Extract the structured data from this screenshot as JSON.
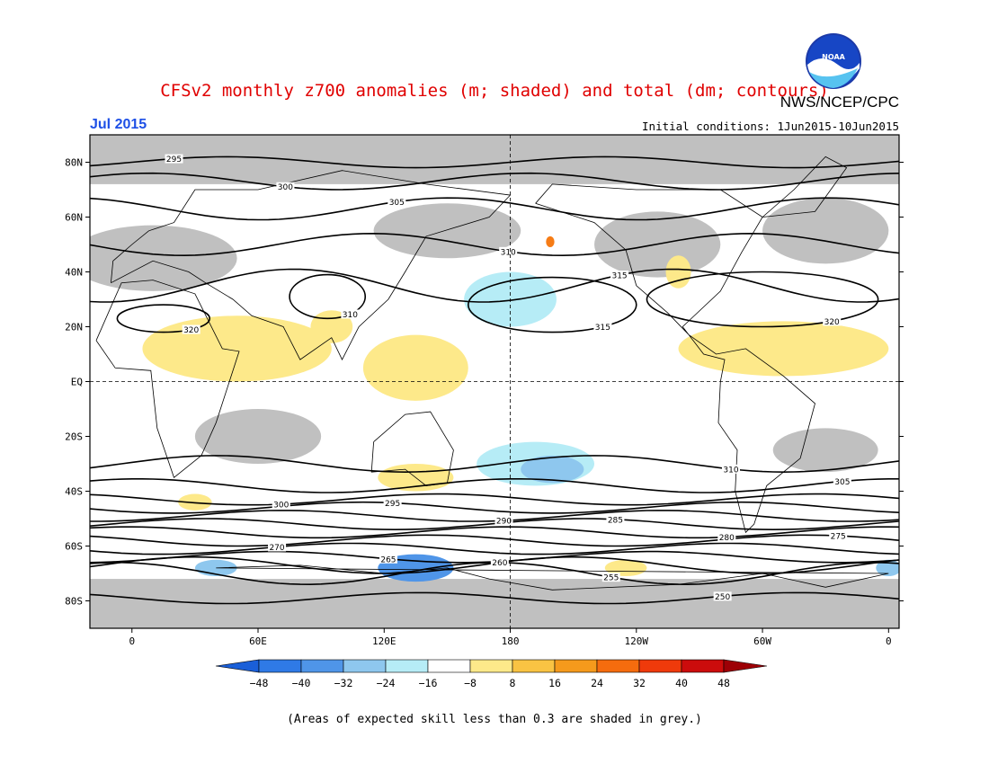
{
  "title": "CFSv2 monthly z700 anomalies (m; shaded) and total (dm; contours)",
  "agency": "NWS/NCEP/CPC",
  "logo_text": "NOAA",
  "month": "Jul 2015",
  "initial_conditions": "Initial conditions: 1Jun2015-10Jun2015",
  "footnote": "(Areas of expected skill less than 0.3 are shaded in grey.)",
  "map": {
    "lon_range": [
      -20,
      365
    ],
    "lat_range": [
      -90,
      90
    ],
    "lat_ticks": [
      {
        "lat": 80,
        "label": "80N"
      },
      {
        "lat": 60,
        "label": "60N"
      },
      {
        "lat": 40,
        "label": "40N"
      },
      {
        "lat": 20,
        "label": "20N"
      },
      {
        "lat": 0,
        "label": "EQ"
      },
      {
        "lat": -20,
        "label": "20S"
      },
      {
        "lat": -40,
        "label": "40S"
      },
      {
        "lat": -60,
        "label": "60S"
      },
      {
        "lat": -80,
        "label": "80S"
      }
    ],
    "lon_ticks": [
      {
        "lon": 0,
        "label": "0"
      },
      {
        "lon": 60,
        "label": "60E"
      },
      {
        "lon": 120,
        "label": "120E"
      },
      {
        "lon": 180,
        "label": "180"
      },
      {
        "lon": 240,
        "label": "120W"
      },
      {
        "lon": 300,
        "label": "60W"
      },
      {
        "lon": 360,
        "label": "0"
      }
    ],
    "contours": [
      {
        "label": "295",
        "lat": 80,
        "amp": 2.0
      },
      {
        "label": "300",
        "lat": 73,
        "amp": 3.0
      },
      {
        "label": "305",
        "lat": 63,
        "amp": 4.0
      },
      {
        "label": "310",
        "lat": 50,
        "amp": 4.0
      },
      {
        "label": "315",
        "lat": 35,
        "amp": 6.0
      },
      {
        "label": "310",
        "lat": -30,
        "amp": 3.0
      },
      {
        "label": "305",
        "lat": -38,
        "amp": 2.5
      },
      {
        "label": "300",
        "lat": -43,
        "amp": 2.0
      },
      {
        "label": "295",
        "lat": -46,
        "amp": 2.0
      },
      {
        "label": "290",
        "lat": -49,
        "amp": 2.0
      },
      {
        "label": "285",
        "lat": -52,
        "amp": 2.0
      },
      {
        "label": "280",
        "lat": -55,
        "amp": 2.0
      },
      {
        "label": "275",
        "lat": -58,
        "amp": 2.0
      },
      {
        "label": "270",
        "lat": -61,
        "amp": 2.0
      },
      {
        "label": "265",
        "lat": -64,
        "amp": 2.0
      },
      {
        "label": "260",
        "lat": -67,
        "amp": 3.0
      },
      {
        "label": "255",
        "lat": -70,
        "amp": 4.0
      },
      {
        "label": "250",
        "lat": -79,
        "amp": 2.0
      }
    ],
    "closed_contours": [
      {
        "label": "320",
        "lon": 300,
        "lat": 30,
        "rlon": 55,
        "rlat": 10
      },
      {
        "label": "320",
        "lon": 15,
        "lat": 23,
        "rlon": 22,
        "rlat": 5
      },
      {
        "label": "315",
        "lon": 200,
        "lat": 28,
        "rlon": 40,
        "rlat": 10
      },
      {
        "label": "310",
        "lon": 93,
        "lat": 31,
        "rlon": 18,
        "rlat": 8
      }
    ],
    "anomaly_regions": [
      {
        "value": 12,
        "color": "#fde98a",
        "lon": 50,
        "lat": 12,
        "rlon": 45,
        "rlat": 12
      },
      {
        "value": 12,
        "color": "#fde98a",
        "lon": 135,
        "lat": 5,
        "rlon": 25,
        "rlat": 12
      },
      {
        "value": 12,
        "color": "#fde98a",
        "lon": 95,
        "lat": 20,
        "rlon": 10,
        "rlat": 6
      },
      {
        "value": 12,
        "color": "#fde98a",
        "lon": 310,
        "lat": 12,
        "rlon": 50,
        "rlat": 10
      },
      {
        "value": 12,
        "color": "#fde98a",
        "lon": 260,
        "lat": 40,
        "rlon": 6,
        "rlat": 6
      },
      {
        "value": 12,
        "color": "#fde98a",
        "lon": 135,
        "lat": -35,
        "rlon": 18,
        "rlat": 5
      },
      {
        "value": 12,
        "color": "#fde98a",
        "lon": 235,
        "lat": -68,
        "rlon": 10,
        "rlat": 3
      },
      {
        "value": 12,
        "color": "#fde98a",
        "lon": 30,
        "lat": -44,
        "rlon": 8,
        "rlat": 3
      },
      {
        "value": -12,
        "color": "#b6ecf6",
        "lon": 180,
        "lat": 30,
        "rlon": 22,
        "rlat": 10
      },
      {
        "value": -12,
        "color": "#b6ecf6",
        "lon": 192,
        "lat": -30,
        "rlon": 28,
        "rlat": 8
      },
      {
        "value": -20,
        "color": "#8ec7ee",
        "lon": 200,
        "lat": -32,
        "rlon": 15,
        "rlat": 5
      },
      {
        "value": -28,
        "color": "#4f95e8",
        "lon": 135,
        "lat": -68,
        "rlon": 18,
        "rlat": 5
      },
      {
        "value": -20,
        "color": "#8ec7ee",
        "lon": 40,
        "lat": -68,
        "rlon": 10,
        "rlat": 3
      },
      {
        "value": -20,
        "color": "#8ec7ee",
        "lon": 360,
        "lat": -68,
        "rlon": 6,
        "rlat": 3
      },
      {
        "value": 28,
        "color": "#f67c16",
        "lon": 199,
        "lat": 51,
        "rlon": 2,
        "rlat": 2
      }
    ],
    "skill_grey": [
      {
        "lon": 10,
        "lat": 45,
        "rlon": 40,
        "rlat": 12
      },
      {
        "lon": 150,
        "lat": 55,
        "rlon": 35,
        "rlat": 10
      },
      {
        "lon": 250,
        "lat": 50,
        "rlon": 30,
        "rlat": 12
      },
      {
        "lon": 330,
        "lat": 55,
        "rlon": 30,
        "rlat": 12
      },
      {
        "lon": 60,
        "lat": -20,
        "rlon": 30,
        "rlat": 10
      },
      {
        "lon": 330,
        "lat": -25,
        "rlon": 25,
        "rlat": 8
      }
    ]
  },
  "colorbar": {
    "boundaries": [
      "-48",
      "-40",
      "-32",
      "-24",
      "-16",
      "-8",
      "8",
      "16",
      "24",
      "32",
      "40",
      "48"
    ],
    "colors": [
      "#1a5fd8",
      "#2f7ae6",
      "#4f95e8",
      "#8ec7ee",
      "#b6ecf6",
      "#ffffff",
      "#fde98a",
      "#f9c343",
      "#f59a1c",
      "#f56c0e",
      "#ef3a0b",
      "#cc0c0c",
      "#9d0006"
    ]
  }
}
